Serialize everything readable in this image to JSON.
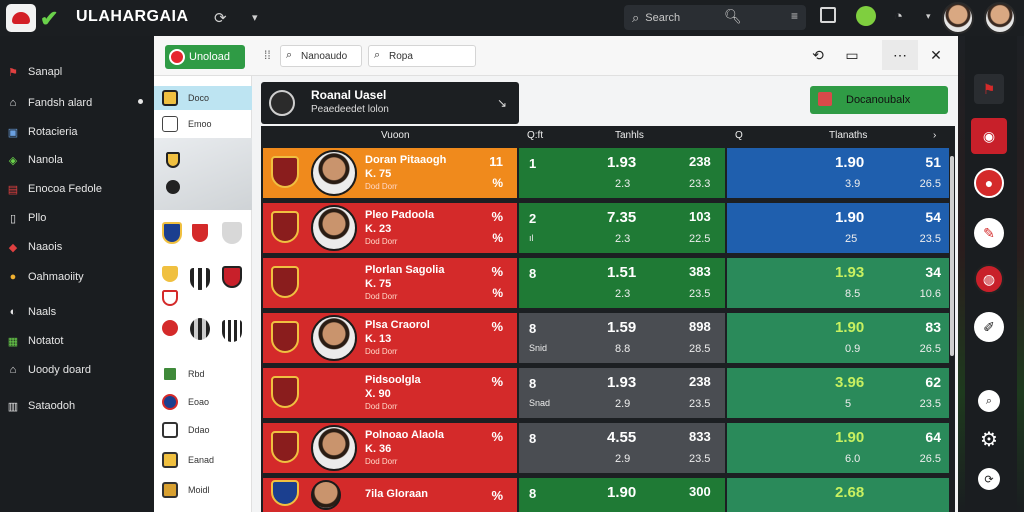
{
  "app": {
    "title": "ULAHARGAIA",
    "search_placeholder": "Search"
  },
  "sidebar": {
    "items": [
      {
        "label": "Sanapl",
        "icon": "flag-icon"
      },
      {
        "label": "Fandsh alard",
        "icon": "home-icon"
      },
      {
        "label": "Rotacieria",
        "icon": "trophy-icon"
      },
      {
        "label": "Nanola",
        "icon": "shield-icon"
      },
      {
        "label": "Enocoa Fedole",
        "icon": "calendar-icon"
      },
      {
        "label": "Pllo",
        "icon": "tablet-icon"
      },
      {
        "label": "Naaois",
        "icon": "badge-icon"
      },
      {
        "label": "Oahmaoiity",
        "icon": "ball-icon"
      },
      {
        "label": "Naals",
        "icon": "globe-icon"
      },
      {
        "label": "Notatot",
        "icon": "list-icon"
      },
      {
        "label": "Uoody doard",
        "icon": "house-icon"
      },
      {
        "label": "Sataodoh",
        "icon": "chart-icon"
      }
    ]
  },
  "toolbar": {
    "upload_label": "Unoload",
    "filter1_label": "Nanoaudo",
    "filter2_label": "Ropa"
  },
  "list": {
    "items": [
      {
        "label": "Doco",
        "selected": true
      },
      {
        "label": "Emoo",
        "selected": false
      },
      {
        "label": "Rbd",
        "selected": false
      },
      {
        "label": "Eoao",
        "selected": false
      },
      {
        "label": "Ddao",
        "selected": false
      },
      {
        "label": "Eanad",
        "selected": false
      },
      {
        "label": "Moidl",
        "selected": false
      }
    ]
  },
  "match": {
    "title": "Roanal Uasel",
    "subtitle": "Peaedeedet lolon",
    "download_label": "Docanoubalx"
  },
  "grid": {
    "headers": [
      "Vuoon",
      "Q:ft",
      "Tanhls",
      "Q",
      "Tlanaths"
    ],
    "rows": [
      {
        "color": "#f08a1c",
        "name": "Doran Pitaaogh",
        "num": "K. 75",
        "info": "Dod Dorr",
        "r1": "11",
        "r2": "%",
        "rank": "1",
        "tag": "",
        "odd": "1.93",
        "sub": "2.3",
        "odd2": "238",
        "sub2": "23.3",
        "c_odd": "1.90",
        "c_sub": "3.9",
        "c_r1": "51",
        "c_r2": "26.5",
        "bcolor": "#1f7a35",
        "ccolor": "#1f5fae"
      },
      {
        "color": "#d42a2a",
        "name": "Pleo Padoola",
        "num": "K. 23",
        "info": "Dod Dorr",
        "r1": "%",
        "r2": "%",
        "rank": "2",
        "tag": "ıl",
        "odd": "7.35",
        "sub": "2.3",
        "odd2": "103",
        "sub2": "22.5",
        "c_odd": "1.90",
        "c_sub": "25",
        "c_r1": "54",
        "c_r2": "23.5",
        "bcolor": "#1f7a35",
        "ccolor": "#1f5fae"
      },
      {
        "color": "#d42a2a",
        "name": "Plorlan Sagolia",
        "num": "K. 75",
        "info": "Dod Dorr",
        "r1": "%",
        "r2": "%",
        "rank": "8",
        "tag": "",
        "odd": "1.51",
        "sub": "2.3",
        "odd2": "383",
        "sub2": "23.5",
        "c_odd": "1.93",
        "c_sub": "8.5",
        "c_r1": "34",
        "c_r2": "10.6",
        "bcolor": "#1f7a35",
        "ccolor": "#2a8a5a"
      },
      {
        "color": "#d42a2a",
        "name": "Plsa Craorol",
        "num": "K. 13",
        "info": "Dod Dorr",
        "r1": "%",
        "r2": "",
        "rank": "8",
        "tag": "Snid",
        "odd": "1.59",
        "sub": "8.8",
        "odd2": "898",
        "sub2": "28.5",
        "c_odd": "1.90",
        "c_sub": "0.9",
        "c_r1": "83",
        "c_r2": "26.5",
        "bcolor": "#4a4d52",
        "ccolor": "#2a8a5a"
      },
      {
        "color": "#d42a2a",
        "name": "Pidsoolgla",
        "num": "X. 90",
        "info": "Dod Dorr",
        "r1": "%",
        "r2": "",
        "rank": "8",
        "tag": "Snad",
        "odd": "1.93",
        "sub": "2.9",
        "odd2": "238",
        "sub2": "23.5",
        "c_odd": "3.96",
        "c_sub": "5",
        "c_r1": "62",
        "c_r2": "23.5",
        "bcolor": "#4a4d52",
        "ccolor": "#2a8a5a"
      },
      {
        "color": "#d42a2a",
        "name": "Polnoao Alaola",
        "num": "K. 36",
        "info": "Dod Dorr",
        "r1": "%",
        "r2": "",
        "rank": "8",
        "tag": "",
        "odd": "4.55",
        "sub": "2.9",
        "odd2": "833",
        "sub2": "23.5",
        "c_odd": "1.90",
        "c_sub": "6.0",
        "c_r1": "64",
        "c_r2": "26.5",
        "bcolor": "#4a4d52",
        "ccolor": "#2a8a5a"
      },
      {
        "color": "#d42a2a",
        "name": "7ila Gloraan",
        "num": "",
        "info": "",
        "r1": "%",
        "r2": "",
        "rank": "8",
        "tag": "",
        "odd": "1.90",
        "sub": "",
        "odd2": "300",
        "sub2": "",
        "c_odd": "2.68",
        "c_sub": "",
        "c_r1": "",
        "c_r2": "",
        "bcolor": "#1f7a35",
        "ccolor": "#2a8a5a"
      }
    ]
  }
}
